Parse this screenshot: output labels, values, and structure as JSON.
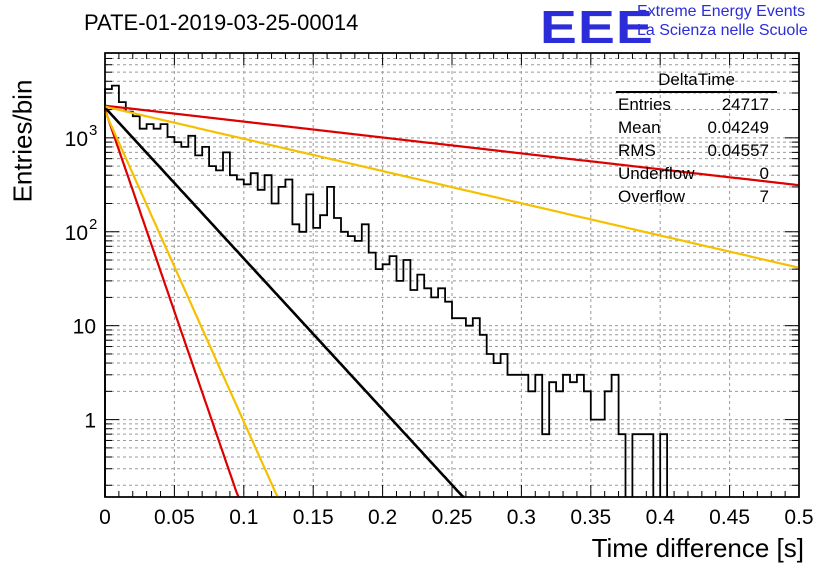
{
  "title": "PATE-01-2019-03-25-00014",
  "logo": {
    "text": "EEE",
    "line1": "Extreme Energy Events",
    "line2": "La Scienza nelle Scuole",
    "color": "#2c2cd9"
  },
  "stats": {
    "name": "DeltaTime",
    "rows": [
      {
        "label": "Entries",
        "value": "24717"
      },
      {
        "label": "Mean",
        "value": "0.04249"
      },
      {
        "label": "RMS",
        "value": "0.04557"
      },
      {
        "label": "Underflow",
        "value": "0"
      },
      {
        "label": "Overflow",
        "value": "7"
      }
    ]
  },
  "chart_data": {
    "type": "histogram",
    "xlabel": "Time difference [s]",
    "ylabel": "Entries/bin",
    "xlim": [
      0,
      0.5
    ],
    "ylim": [
      0.15,
      8000
    ],
    "yscale": "log",
    "grid": true,
    "xticks": [
      "0",
      "0.05",
      "0.1",
      "0.15",
      "0.2",
      "0.25",
      "0.3",
      "0.35",
      "0.4",
      "0.45",
      "0.5"
    ],
    "yticks": [
      {
        "value": 1,
        "label": "1"
      },
      {
        "value": 10,
        "label": "10"
      },
      {
        "value": 100,
        "label": "10",
        "exp": "2"
      },
      {
        "value": 1000,
        "label": "10",
        "exp": "3"
      }
    ],
    "histogram": {
      "bin_width": 0.005,
      "counts": [
        3300,
        3600,
        2400,
        1900,
        1700,
        1250,
        1400,
        1250,
        1400,
        1020,
        900,
        800,
        1050,
        650,
        800,
        500,
        450,
        700,
        400,
        360,
        320,
        420,
        280,
        400,
        200,
        300,
        360,
        120,
        100,
        250,
        110,
        150,
        300,
        140,
        100,
        90,
        80,
        120,
        60,
        40,
        45,
        55,
        30,
        50,
        24,
        35,
        25,
        20,
        25,
        18,
        12,
        12,
        10,
        12,
        8,
        5,
        4,
        5,
        3,
        3,
        3,
        2,
        3,
        0.7,
        2.5,
        2,
        3,
        2.5,
        3,
        2,
        1,
        1,
        2,
        3,
        0.7,
        0,
        0.7,
        0.7,
        0.7,
        0,
        0.7,
        0,
        0,
        0,
        0,
        0,
        0,
        0,
        0,
        0,
        0,
        0,
        0,
        0,
        0,
        0,
        0,
        0,
        0,
        0
      ],
      "color": "#000000"
    },
    "fits": [
      {
        "color": "#000000",
        "A": 2100,
        "slope": -37
      },
      {
        "color": "#dd0000",
        "A": 2200,
        "slope": -3.9
      },
      {
        "color": "#f5c000",
        "A": 2150,
        "slope": -7.9
      },
      {
        "color": "#dd0000",
        "A": 2000,
        "slope": -99
      },
      {
        "color": "#f5c000",
        "A": 1900,
        "slope": -76
      }
    ]
  }
}
